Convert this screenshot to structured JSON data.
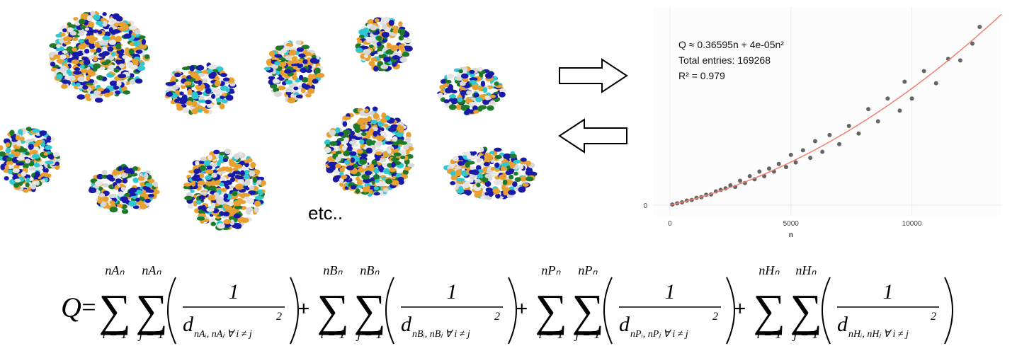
{
  "chart_data": {
    "type": "scatter",
    "annotations": [
      "Q ≈ 0.36595n + 4e-05n²",
      "Total entries: 169268",
      "R² = 0.979"
    ],
    "x_label": "n",
    "x": [
      100,
      300,
      500,
      700,
      900,
      1100,
      1300,
      1500,
      1700,
      1900,
      2100,
      2300,
      2500,
      2700,
      2900,
      3100,
      3300,
      3500,
      3700,
      3900,
      4100,
      4300,
      4500,
      4800,
      5000,
      5200,
      5500,
      5800,
      6000,
      6300,
      6600,
      7000,
      7400,
      7800,
      8200,
      8600,
      9000,
      9500,
      9700,
      10000,
      10500,
      11000,
      11500,
      12000,
      12500,
      12800
    ],
    "y": [
      40,
      120,
      180,
      300,
      340,
      480,
      520,
      680,
      700,
      900,
      1000,
      1100,
      1300,
      1200,
      1600,
      1450,
      1900,
      1700,
      2200,
      1900,
      2400,
      2200,
      2700,
      2500,
      3300,
      2800,
      3600,
      3100,
      4200,
      3500,
      4600,
      4000,
      5200,
      4700,
      6300,
      5500,
      7000,
      6200,
      8100,
      7000,
      8800,
      8000,
      9600,
      9500,
      10600,
      11700
    ],
    "color": "#000000",
    "fit": {
      "color": "#f08070",
      "coefficients": [
        0.36595,
        4e-05
      ]
    },
    "xlim": [
      -700,
      13700
    ],
    "ylim": [
      -700,
      13000
    ],
    "xticks": [
      0,
      5000,
      10000
    ],
    "yticks": [
      0
    ],
    "grid": true
  },
  "caption": "etc..",
  "formula": {
    "lhs": "Q",
    "operators": [
      "=",
      "+",
      "+",
      "+"
    ],
    "terms": [
      {
        "upper_i": "nAₙ",
        "upper_j": "nAₙ",
        "lower_i": "i = 1",
        "lower_j": "j = 1",
        "numerator": "1",
        "denominator": "d",
        "subscript": "nAᵢ, nAⱼ ∀ i ≠ j",
        "exponent": "2"
      },
      {
        "upper_i": "nBₙ",
        "upper_j": "nBₙ",
        "lower_i": "i = 1",
        "lower_j": "j = 1",
        "numerator": "1",
        "denominator": "d",
        "subscript": "nBᵢ, nBⱼ ∀ i ≠ j",
        "exponent": "2"
      },
      {
        "upper_i": "nPₙ",
        "upper_j": "nPₙ",
        "lower_i": "i = 1",
        "lower_j": "j = 1",
        "numerator": "1",
        "denominator": "d",
        "subscript": "nPᵢ, nPⱼ ∀ i ≠ j",
        "exponent": "2"
      },
      {
        "upper_i": "nHₙ",
        "upper_j": "nHₙ",
        "lower_i": "i = 1",
        "lower_j": "j = 1",
        "numerator": "1",
        "denominator": "d",
        "subscript": "nHᵢ, nHⱼ ∀ i ≠ j",
        "exponent": "2"
      }
    ]
  }
}
